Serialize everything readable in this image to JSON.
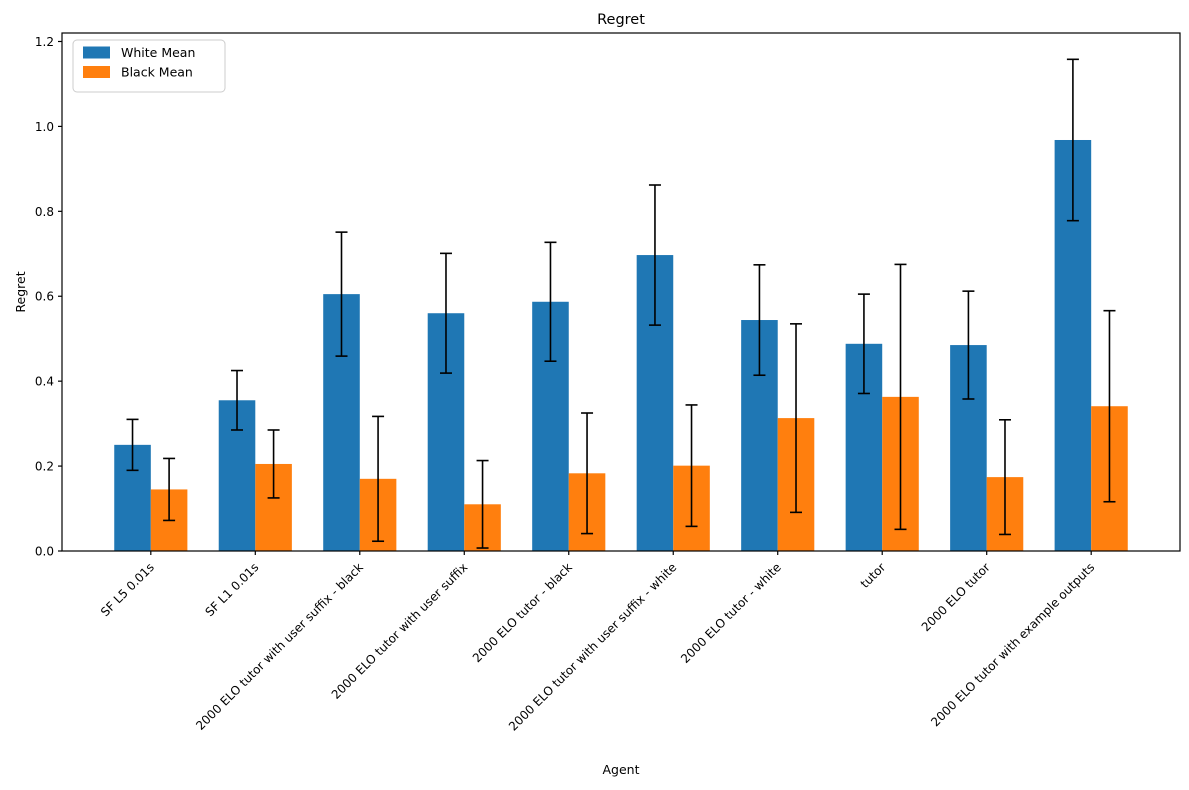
{
  "chart_data": {
    "type": "bar",
    "title": "Regret",
    "xlabel": "Agent",
    "ylabel": "Regret",
    "ylim": [
      0,
      1.22
    ],
    "yticks": [
      0.0,
      0.2,
      0.4,
      0.6,
      0.8,
      1.0,
      1.2
    ],
    "grid": false,
    "legend_position": "upper left",
    "bar_width": 0.35,
    "error_bar_color": "#000000",
    "axis_color": "#000000",
    "background_color": "#ffffff",
    "categories": [
      "SF L5 0.01s",
      "SF L1 0.01s",
      "2000 ELO tutor with user suffix - black",
      "2000 ELO tutor with user suffix",
      "2000 ELO tutor - black",
      "2000 ELO tutor with user suffix - white",
      "2000 ELO tutor - white",
      "tutor",
      "2000 ELO tutor",
      "2000 ELO tutor with example outputs"
    ],
    "series": [
      {
        "name": "White Mean",
        "color": "#1f77b4",
        "values": [
          0.25,
          0.355,
          0.605,
          0.56,
          0.587,
          0.697,
          0.544,
          0.488,
          0.485,
          0.968
        ],
        "errors": [
          0.06,
          0.07,
          0.146,
          0.141,
          0.14,
          0.165,
          0.13,
          0.117,
          0.127,
          0.19
        ]
      },
      {
        "name": "Black Mean",
        "color": "#ff7f0e",
        "values": [
          0.145,
          0.205,
          0.17,
          0.11,
          0.183,
          0.201,
          0.313,
          0.363,
          0.174,
          0.341
        ],
        "errors": [
          0.073,
          0.08,
          0.147,
          0.103,
          0.142,
          0.143,
          0.222,
          0.312,
          0.135,
          0.225
        ]
      }
    ]
  }
}
